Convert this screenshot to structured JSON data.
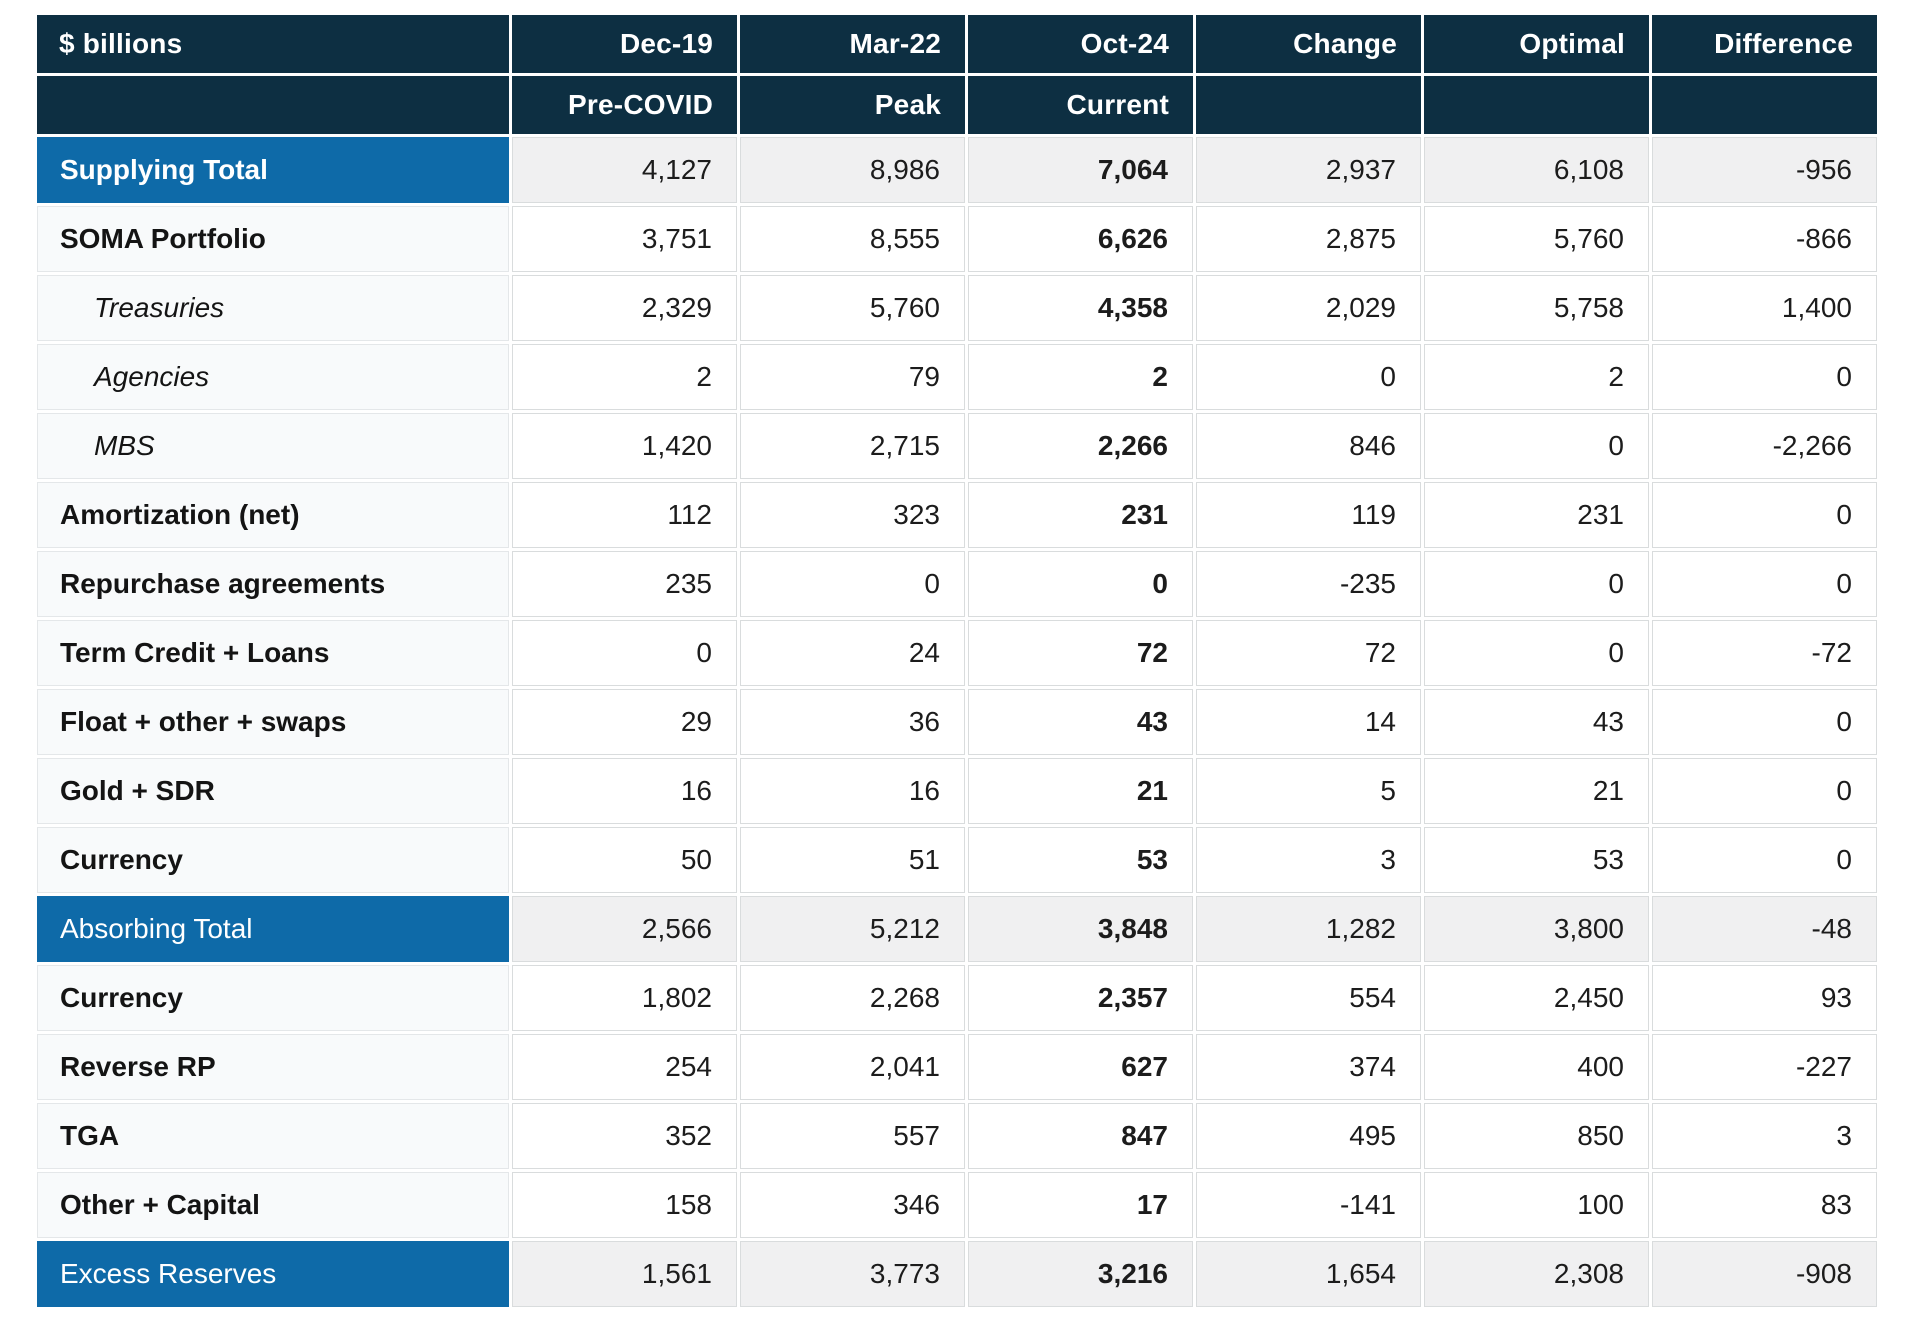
{
  "chart_data": {
    "type": "table",
    "unit_label": "$ billions",
    "columns": [
      {
        "label": "Dec-19",
        "sublabel": "Pre-COVID"
      },
      {
        "label": "Mar-22",
        "sublabel": "Peak"
      },
      {
        "label": "Oct-24",
        "sublabel": "Current"
      },
      {
        "label": "Change",
        "sublabel": ""
      },
      {
        "label": "Optimal",
        "sublabel": ""
      },
      {
        "label": "Difference",
        "sublabel": ""
      }
    ],
    "rows": [
      {
        "label": "Supplying Total",
        "style": "total-bold",
        "values": [
          "4,127",
          "8,986",
          "7,064",
          "2,937",
          "6,108",
          "-956"
        ]
      },
      {
        "label": "SOMA Portfolio",
        "style": "bold",
        "values": [
          "3,751",
          "8,555",
          "6,626",
          "2,875",
          "5,760",
          "-866"
        ]
      },
      {
        "label": "Treasuries",
        "style": "italic",
        "values": [
          "2,329",
          "5,760",
          "4,358",
          "2,029",
          "5,758",
          "1,400"
        ]
      },
      {
        "label": "Agencies",
        "style": "italic",
        "values": [
          "2",
          "79",
          "2",
          "0",
          "2",
          "0"
        ]
      },
      {
        "label": "MBS",
        "style": "italic",
        "values": [
          "1,420",
          "2,715",
          "2,266",
          "846",
          "0",
          "-2,266"
        ]
      },
      {
        "label": "Amortization (net)",
        "style": "bold",
        "values": [
          "112",
          "323",
          "231",
          "119",
          "231",
          "0"
        ]
      },
      {
        "label": "Repurchase agreements",
        "style": "bold",
        "values": [
          "235",
          "0",
          "0",
          "-235",
          "0",
          "0"
        ]
      },
      {
        "label": "Term Credit + Loans",
        "style": "bold",
        "values": [
          "0",
          "24",
          "72",
          "72",
          "0",
          "-72"
        ]
      },
      {
        "label": "Float + other + swaps",
        "style": "bold",
        "values": [
          "29",
          "36",
          "43",
          "14",
          "43",
          "0"
        ]
      },
      {
        "label": "Gold + SDR",
        "style": "bold",
        "values": [
          "16",
          "16",
          "21",
          "5",
          "21",
          "0"
        ]
      },
      {
        "label": "Currency",
        "style": "bold",
        "values": [
          "50",
          "51",
          "53",
          "3",
          "53",
          "0"
        ]
      },
      {
        "label": "Absorbing Total",
        "style": "total",
        "values": [
          "2,566",
          "5,212",
          "3,848",
          "1,282",
          "3,800",
          "-48"
        ]
      },
      {
        "label": "Currency",
        "style": "bold",
        "values": [
          "1,802",
          "2,268",
          "2,357",
          "554",
          "2,450",
          "93"
        ]
      },
      {
        "label": "Reverse RP",
        "style": "bold",
        "values": [
          "254",
          "2,041",
          "627",
          "374",
          "400",
          "-227"
        ]
      },
      {
        "label": "TGA",
        "style": "bold",
        "values": [
          "352",
          "557",
          "847",
          "495",
          "850",
          "3"
        ]
      },
      {
        "label": "Other + Capital",
        "style": "bold",
        "values": [
          "158",
          "346",
          "17",
          "-141",
          "100",
          "83"
        ]
      },
      {
        "label": "Excess Reserves",
        "style": "total",
        "values": [
          "1,561",
          "3,773",
          "3,216",
          "1,654",
          "2,308",
          "-908"
        ]
      }
    ]
  },
  "colors": {
    "header_bg": "#0d2f42",
    "highlight_bg": "#0e6aa8",
    "total_value_bg": "#f0f0f1",
    "label_column_bg": "#f8fafb",
    "grid_line": "#d9dcdd",
    "text": "#1c1c1c",
    "header_text": "#ffffff"
  }
}
